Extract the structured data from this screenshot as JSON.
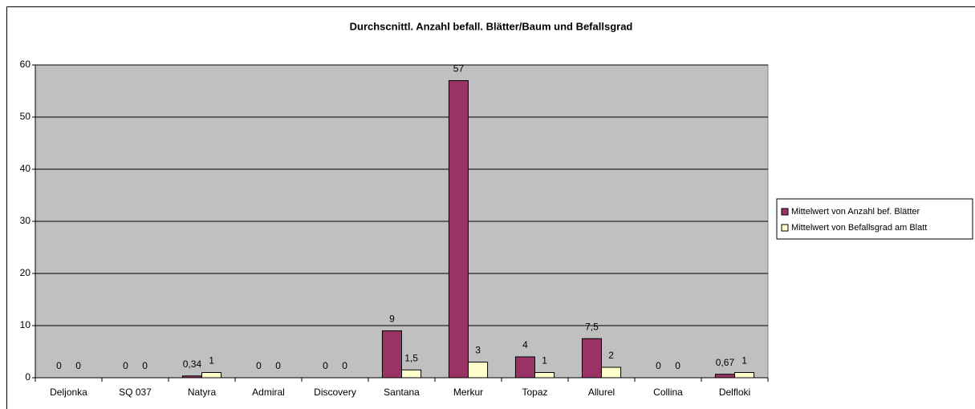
{
  "chart_data": {
    "type": "bar",
    "title": "Durchscnittl. Anzahl befall. Blätter/Baum und Befallsgrad",
    "categories": [
      "Deljonka",
      "SQ 037",
      "Natyra",
      "Admiral",
      "Discovery",
      "Santana",
      "Merkur",
      "Topaz",
      "Allurel",
      "Collina",
      "Delfloki"
    ],
    "series": [
      {
        "name": "Mittelwert von Anzahl bef. Blätter",
        "color": "#993366",
        "values": [
          0,
          0,
          0.34,
          0,
          0,
          9,
          57,
          4,
          7.5,
          0,
          0.67
        ],
        "value_labels": [
          "0",
          "0",
          "0,34",
          "0",
          "0",
          "9",
          "57",
          "4",
          "7,5",
          "0",
          "0,67"
        ]
      },
      {
        "name": "Mittelwert von Befallsgrad am Blatt",
        "color": "#ffffcc",
        "values": [
          0,
          0,
          1,
          0,
          0,
          1.5,
          3,
          1,
          2,
          0,
          1
        ],
        "value_labels": [
          "0",
          "0",
          "1",
          "0",
          "0",
          "1,5",
          "3",
          "1",
          "2",
          "0",
          "1"
        ]
      }
    ],
    "ylim": [
      0,
      60
    ],
    "yticks": [
      0,
      10,
      20,
      30,
      40,
      50,
      60
    ],
    "grid": true,
    "legend": "right",
    "plot_background": "#c0c0c0"
  }
}
